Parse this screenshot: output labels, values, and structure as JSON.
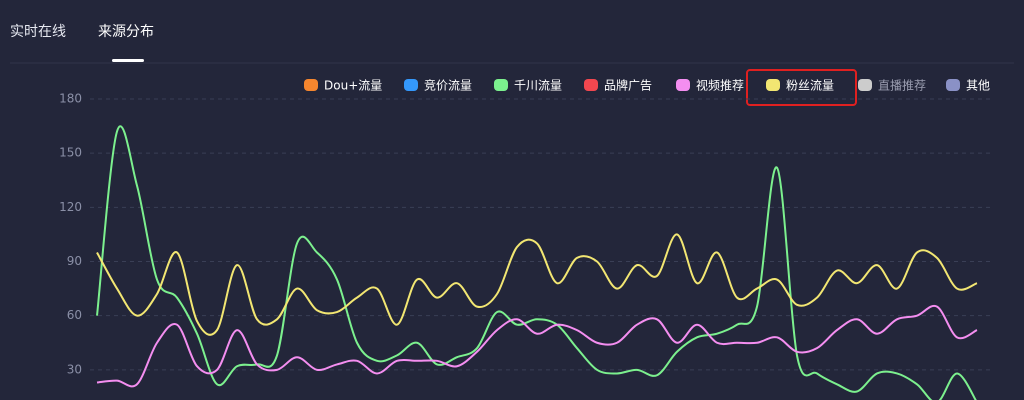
{
  "tabs": [
    "实时在线",
    "来源分布"
  ],
  "chart_data": {
    "type": "line",
    "legend": [
      {
        "name": "Dou+流量",
        "color": "#f5862e"
      },
      {
        "name": "竞价流量",
        "color": "#3498fb"
      },
      {
        "name": "千川流量",
        "color": "#7cf08e"
      },
      {
        "name": "品牌广告",
        "color": "#f2474f"
      },
      {
        "name": "视频推荐",
        "color": "#f48ef0"
      },
      {
        "name": "粉丝流量",
        "color": "#f2e672"
      },
      {
        "name": "直播推荐",
        "color": "#cccccc"
      },
      {
        "name": "其他",
        "color": "#8a91c6"
      }
    ],
    "series": [
      {
        "name": "千川流量",
        "color": "#7cf08e",
        "values": [
          60,
          162,
          132,
          80,
          70,
          50,
          22,
          32,
          33,
          38,
          100,
          95,
          80,
          45,
          35,
          38,
          45,
          33,
          37,
          42,
          62,
          55,
          58,
          55,
          42,
          30,
          28,
          30,
          27,
          40,
          48,
          50,
          55,
          65,
          142,
          38,
          28,
          22,
          18,
          28,
          28,
          22,
          12,
          28,
          12
        ]
      },
      {
        "name": "粉丝流量",
        "color": "#f2e672",
        "values": [
          95,
          75,
          60,
          72,
          95,
          57,
          52,
          88,
          58,
          58,
          75,
          63,
          62,
          70,
          75,
          55,
          80,
          70,
          78,
          65,
          72,
          98,
          100,
          78,
          92,
          90,
          75,
          88,
          82,
          105,
          78,
          95,
          70,
          75,
          80,
          66,
          70,
          85,
          78,
          88,
          75,
          95,
          92,
          75,
          78
        ]
      },
      {
        "name": "视频推荐",
        "color": "#f48ef0",
        "values": [
          23,
          24,
          22,
          45,
          55,
          32,
          30,
          52,
          33,
          30,
          37,
          30,
          33,
          35,
          28,
          35,
          35,
          35,
          32,
          40,
          52,
          58,
          50,
          55,
          52,
          45,
          45,
          55,
          58,
          45,
          55,
          45,
          45,
          45,
          48,
          40,
          42,
          52,
          58,
          50,
          58,
          60,
          65,
          48,
          52
        ]
      }
    ],
    "ylim": [
      0,
      180
    ],
    "yticks": [
      30,
      60,
      90,
      120,
      150,
      180
    ],
    "grid": true
  }
}
